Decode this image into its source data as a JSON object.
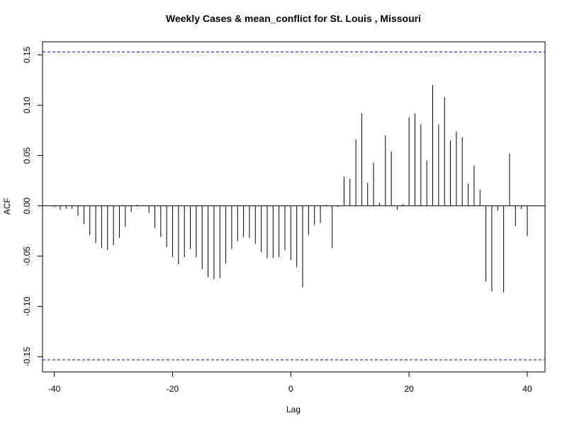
{
  "chart_data": {
    "type": "bar",
    "subtype": "acf-lag-plot",
    "title": "Weekly Cases & mean_conflict for St. Louis , Missouri",
    "xlabel": "Lag",
    "ylabel": "ACF",
    "xlim": [
      -42,
      43
    ],
    "ylim": [
      -0.165,
      0.163
    ],
    "x_ticks": [
      -40,
      -20,
      0,
      20,
      40
    ],
    "x_tick_labels": [
      "-40",
      "-20",
      "0",
      "20",
      "40"
    ],
    "y_ticks": [
      -0.15,
      -0.1,
      -0.05,
      0.0,
      0.05,
      0.1,
      0.15
    ],
    "y_tick_labels": [
      "-0.15",
      "-0.10",
      "-0.05",
      "0.00",
      "0.05",
      "0.10",
      "0.15"
    ],
    "confidence_bounds": [
      0.153,
      -0.153
    ],
    "confidence_color": "#0000cc",
    "bar_color": "#000000",
    "lags": [
      -40,
      -39,
      -38,
      -37,
      -36,
      -35,
      -34,
      -33,
      -32,
      -31,
      -30,
      -29,
      -28,
      -27,
      -26,
      -25,
      -24,
      -23,
      -22,
      -21,
      -20,
      -19,
      -18,
      -17,
      -16,
      -15,
      -14,
      -13,
      -12,
      -11,
      -10,
      -9,
      -8,
      -7,
      -6,
      -5,
      -4,
      -3,
      -2,
      -1,
      0,
      1,
      2,
      3,
      4,
      5,
      6,
      7,
      8,
      9,
      10,
      11,
      12,
      13,
      14,
      15,
      16,
      17,
      18,
      19,
      20,
      21,
      22,
      23,
      24,
      25,
      26,
      27,
      28,
      29,
      30,
      31,
      32,
      33,
      34,
      35,
      36,
      37,
      38,
      39,
      40
    ],
    "values": [
      -0.001,
      -0.004,
      -0.003,
      -0.003,
      -0.01,
      -0.018,
      -0.029,
      -0.037,
      -0.042,
      -0.044,
      -0.039,
      -0.032,
      -0.021,
      -0.006,
      0.001,
      0.0,
      -0.007,
      -0.022,
      -0.031,
      -0.041,
      -0.051,
      -0.058,
      -0.051,
      -0.043,
      -0.051,
      -0.063,
      -0.071,
      -0.073,
      -0.072,
      -0.057,
      -0.043,
      -0.035,
      -0.031,
      -0.032,
      -0.038,
      -0.046,
      -0.052,
      -0.052,
      -0.051,
      -0.044,
      -0.054,
      -0.061,
      -0.081,
      -0.029,
      -0.019,
      -0.017,
      0.001,
      -0.042,
      -0.001,
      0.029,
      0.027,
      0.066,
      0.092,
      0.023,
      0.043,
      0.003,
      0.07,
      0.054,
      -0.004,
      0.002,
      0.088,
      0.092,
      0.081,
      0.045,
      0.12,
      0.081,
      0.108,
      0.065,
      0.074,
      0.068,
      0.022,
      0.04,
      0.016,
      -0.075,
      -0.085,
      -0.005,
      -0.086,
      0.052,
      -0.02,
      -0.003,
      -0.03
    ]
  }
}
